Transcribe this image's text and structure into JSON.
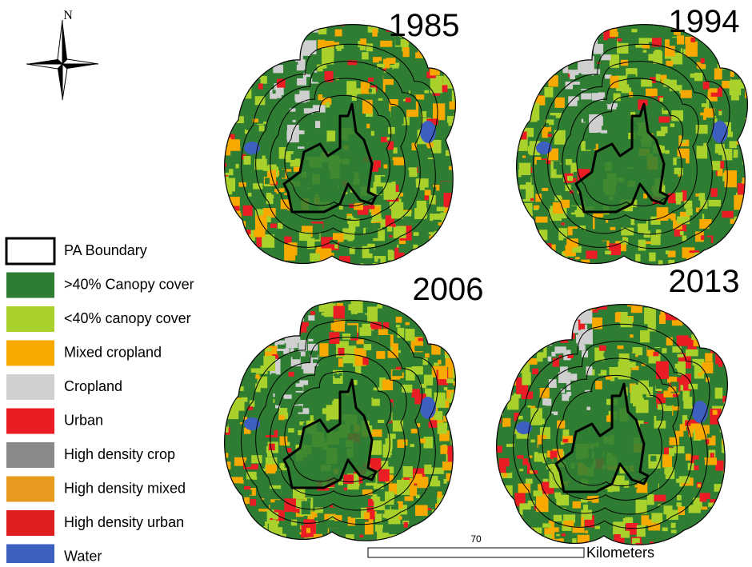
{
  "north": "N",
  "maps": [
    {
      "year": "1985"
    },
    {
      "year": "1994"
    },
    {
      "year": "2006"
    },
    {
      "year": "2013"
    }
  ],
  "legend": [
    {
      "label": "PA Boundary",
      "color": "#ffffff"
    },
    {
      "label": ">40% Canopy cover",
      "color": "#2f7d32"
    },
    {
      "label": "<40% canopy cover",
      "color": "#a8d12c"
    },
    {
      "label": "Mixed cropland",
      "color": "#f7a900"
    },
    {
      "label": "Cropland",
      "color": "#cfcfcf"
    },
    {
      "label": "Urban",
      "color": "#ea1c24"
    },
    {
      "label": "High density crop",
      "color": "#8a8a8a"
    },
    {
      "label": "High density mixed",
      "color": "#e79b1e"
    },
    {
      "label": "High density urban",
      "color": "#de1f1f"
    },
    {
      "label": "Water",
      "color": "#3d5fbf"
    }
  ],
  "scale": {
    "value": "70",
    "unit": "Kilometers"
  }
}
